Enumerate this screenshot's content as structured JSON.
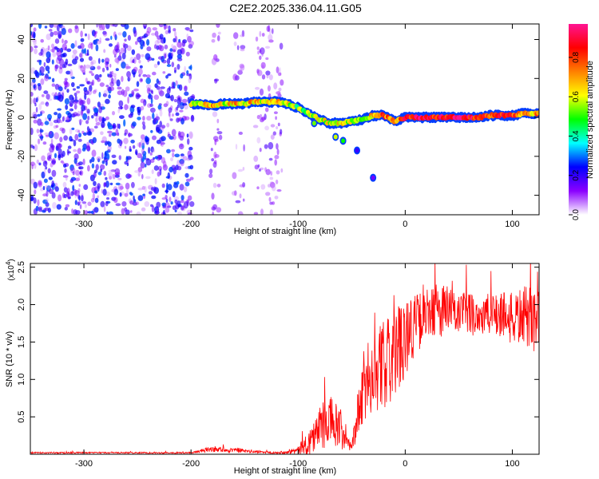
{
  "title": "C2E2.2025.336.04.11.G05",
  "chart_data": [
    {
      "type": "heatmap",
      "title": "C2E2.2025.336.04.11.G05",
      "xlabel": "Height of straight line (km)",
      "ylabel": "Frequency (Hz)",
      "xlim": [
        -350,
        125
      ],
      "ylim": [
        -50,
        48
      ],
      "xticks": [
        -300,
        -200,
        -100,
        0,
        100
      ],
      "xtick_labels": [
        "-300",
        "-200",
        "-100",
        "0",
        "100"
      ],
      "yticks": [
        -40,
        -20,
        0,
        20,
        40
      ],
      "ytick_labels": [
        "-40",
        "-20",
        "0",
        "20",
        "40"
      ],
      "colorbar": {
        "label": "Normalized spectral amplitude",
        "range": [
          0,
          0.97
        ],
        "ticks": [
          0.0,
          0.2,
          0.4,
          0.6,
          0.8
        ],
        "tick_labels": [
          "0.0",
          "0.2",
          "0.4",
          "0.6",
          "0.8"
        ],
        "colormap": [
          "#ffffff",
          "#8b00ff",
          "#0000ff",
          "#00ffff",
          "#00ff00",
          "#ffff00",
          "#ff8000",
          "#ff0000",
          "#ff1493"
        ]
      },
      "noise_region": {
        "x_range": [
          -350,
          -115
        ],
        "dense_until": -198,
        "gap_ranges": [
          [
            -198,
            -182
          ],
          [
            -172,
            -160
          ],
          [
            -150,
            -140
          ]
        ],
        "amplitude": [
          0.05,
          0.3
        ]
      },
      "signal_track": [
        {
          "x": -200,
          "f": 7,
          "a": 0.6
        },
        {
          "x": -190,
          "f": 7,
          "a": 0.65
        },
        {
          "x": -180,
          "f": 6,
          "a": 0.7
        },
        {
          "x": -170,
          "f": 7,
          "a": 0.6
        },
        {
          "x": -160,
          "f": 7,
          "a": 0.7
        },
        {
          "x": -150,
          "f": 7,
          "a": 0.65
        },
        {
          "x": -140,
          "f": 8,
          "a": 0.7
        },
        {
          "x": -130,
          "f": 8,
          "a": 0.6
        },
        {
          "x": -120,
          "f": 8,
          "a": 0.65
        },
        {
          "x": -110,
          "f": 7,
          "a": 0.6
        },
        {
          "x": -100,
          "f": 5,
          "a": 0.55
        },
        {
          "x": -90,
          "f": 2,
          "a": 0.55
        },
        {
          "x": -80,
          "f": -1,
          "a": 0.6
        },
        {
          "x": -70,
          "f": -3,
          "a": 0.6
        },
        {
          "x": -60,
          "f": -3,
          "a": 0.65
        },
        {
          "x": -50,
          "f": -2,
          "a": 0.6
        },
        {
          "x": -40,
          "f": -1,
          "a": 0.6
        },
        {
          "x": -30,
          "f": 1,
          "a": 0.7
        },
        {
          "x": -20,
          "f": 1,
          "a": 0.8
        },
        {
          "x": -10,
          "f": -2,
          "a": 0.65
        },
        {
          "x": 0,
          "f": 0,
          "a": 0.85
        },
        {
          "x": 10,
          "f": 0,
          "a": 0.9
        },
        {
          "x": 20,
          "f": 0,
          "a": 0.9
        },
        {
          "x": 30,
          "f": 0,
          "a": 0.85
        },
        {
          "x": 40,
          "f": 0,
          "a": 0.9
        },
        {
          "x": 50,
          "f": 0,
          "a": 0.95
        },
        {
          "x": 60,
          "f": 0,
          "a": 0.9
        },
        {
          "x": 70,
          "f": 0,
          "a": 0.85
        },
        {
          "x": 80,
          "f": 1,
          "a": 0.8
        },
        {
          "x": 90,
          "f": 1,
          "a": 0.85
        },
        {
          "x": 100,
          "f": 1,
          "a": 0.8
        },
        {
          "x": 110,
          "f": 2,
          "a": 0.75
        },
        {
          "x": 120,
          "f": 2,
          "a": 0.7
        }
      ],
      "outlier_points": [
        {
          "x": -65,
          "f": -10,
          "a": 0.6
        },
        {
          "x": -58,
          "f": -12,
          "a": 0.5
        },
        {
          "x": -45,
          "f": -17,
          "a": 0.2
        },
        {
          "x": -30,
          "f": -31,
          "a": 0.15
        },
        {
          "x": -85,
          "f": -3,
          "a": 0.55
        }
      ]
    },
    {
      "type": "line",
      "xlabel": "Height of straight line (km)",
      "ylabel": "SNR (10 * v/v)",
      "y_exponent_label": "(x10",
      "y_exponent": "4",
      "y_exponent_close": ")",
      "xlim": [
        -350,
        125
      ],
      "ylim": [
        0,
        2.55
      ],
      "xticks": [
        -300,
        -200,
        -100,
        0,
        100
      ],
      "xtick_labels": [
        "-300",
        "-200",
        "-100",
        "0",
        "100"
      ],
      "yticks": [
        0.5,
        1.0,
        1.5,
        2.0,
        2.5
      ],
      "ytick_labels": [
        "0.5",
        "1.0",
        "1.5",
        "2.0",
        "2.5"
      ],
      "line_color": "#ff0000",
      "envelope": {
        "x": [
          -350,
          -200,
          -180,
          -160,
          -120,
          -100,
          -90,
          -80,
          -70,
          -60,
          -55,
          -50,
          -40,
          -30,
          -20,
          -10,
          0,
          10,
          20,
          30,
          40,
          50,
          60,
          70,
          80,
          90,
          100,
          110,
          120,
          125
        ],
        "y": [
          0.02,
          0.02,
          0.07,
          0.05,
          0.02,
          0.05,
          0.15,
          0.35,
          0.45,
          0.3,
          0.15,
          0.1,
          0.8,
          1.1,
          1.2,
          1.3,
          1.6,
          1.75,
          1.85,
          1.95,
          1.9,
          1.85,
          1.9,
          1.85,
          1.85,
          1.9,
          1.8,
          1.85,
          1.8,
          1.9
        ],
        "noise": [
          0.01,
          0.01,
          0.04,
          0.03,
          0.01,
          0.05,
          0.2,
          0.3,
          0.35,
          0.3,
          0.1,
          0.05,
          0.55,
          0.55,
          0.6,
          0.6,
          0.55,
          0.4,
          0.35,
          0.35,
          0.4,
          0.3,
          0.3,
          0.3,
          0.3,
          0.35,
          0.35,
          0.4,
          0.45,
          0.4
        ]
      }
    }
  ]
}
